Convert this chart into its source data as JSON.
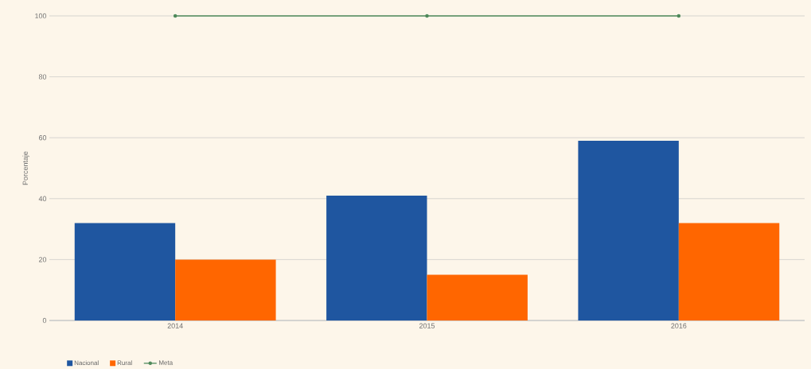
{
  "chart_data": {
    "type": "bar",
    "ylabel": "Porcentaje",
    "categories": [
      "2014",
      "2015",
      "2016"
    ],
    "series": [
      {
        "name": "Nacional",
        "color": "#1f56a0",
        "values": [
          32,
          41,
          59
        ]
      },
      {
        "name": "Rural",
        "color": "#ff6600",
        "values": [
          20,
          15,
          32
        ]
      },
      {
        "name": "Meta",
        "type": "line",
        "color": "#4f8a5b",
        "values": [
          100,
          100,
          100
        ],
        "marker": "circle"
      }
    ],
    "ylim": [
      0,
      100
    ],
    "yticks": [
      0,
      20,
      40,
      60,
      80,
      100
    ],
    "grid": "y",
    "legend": "bottom left"
  }
}
